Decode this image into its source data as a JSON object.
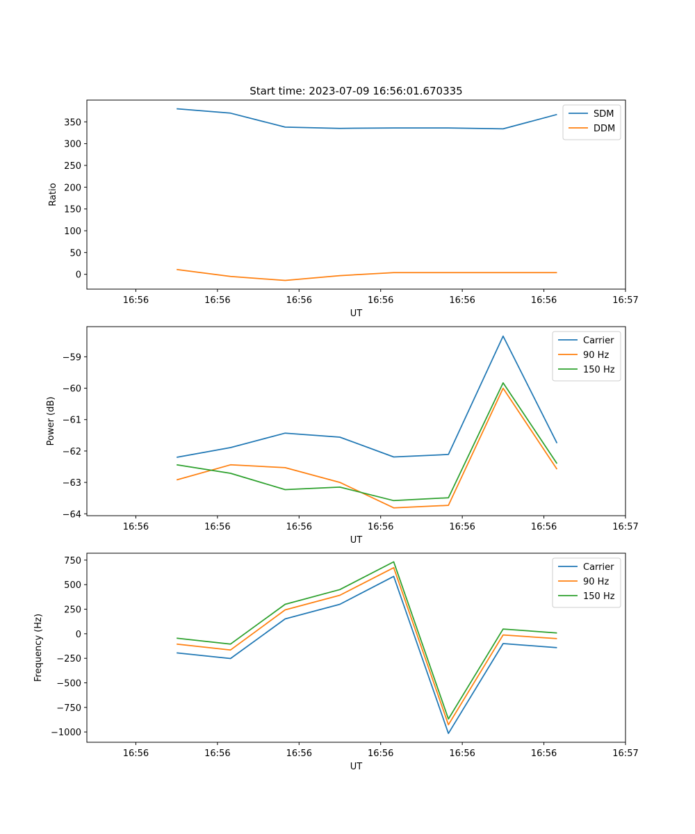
{
  "chart_data": [
    {
      "type": "line",
      "title": "Start time: 2023-07-09 16:56:01.670335",
      "xlabel": "UT",
      "ylabel": "Ratio",
      "xticks": [
        "16:56",
        "16:56",
        "16:56",
        "16:56",
        "16:56",
        "16:56",
        "16:57"
      ],
      "xlim": [
        -0.6,
        6.0
      ],
      "ylim": [
        -34,
        400
      ],
      "yticks": [
        0,
        50,
        100,
        150,
        200,
        250,
        300,
        350
      ],
      "ytick_labels": [
        "0",
        "50",
        "100",
        "150",
        "200",
        "250",
        "300",
        "350"
      ],
      "x": [
        0.5,
        1.16,
        1.83,
        2.5,
        3.16,
        3.83,
        4.5,
        5.16
      ],
      "legend_position": "top-right",
      "series": [
        {
          "name": "SDM",
          "color": "#1f77b4",
          "values": [
            380,
            370,
            338,
            335,
            336,
            336,
            334,
            367
          ]
        },
        {
          "name": "DDM",
          "color": "#ff7f0e",
          "values": [
            11,
            -5,
            -14,
            -3,
            4,
            4,
            4,
            4
          ]
        }
      ]
    },
    {
      "type": "line",
      "title": "",
      "xlabel": "UT",
      "ylabel": "Power (dB)",
      "xticks": [
        "16:56",
        "16:56",
        "16:56",
        "16:56",
        "16:56",
        "16:56",
        "16:57"
      ],
      "xlim": [
        -0.6,
        6.0
      ],
      "ylim": [
        -64.06,
        -58.04
      ],
      "yticks": [
        -64,
        -63,
        -62,
        -61,
        -60,
        -59
      ],
      "ytick_labels": [
        "−64",
        "−63",
        "−62",
        "−61",
        "−60",
        "−59"
      ],
      "x": [
        0.5,
        1.16,
        1.83,
        2.5,
        3.16,
        3.83,
        4.5,
        5.16
      ],
      "legend_position": "top-right",
      "series": [
        {
          "name": "Carrier",
          "color": "#1f77b4",
          "values": [
            -62.2,
            -61.89,
            -61.43,
            -61.56,
            -62.19,
            -62.11,
            -58.34,
            -61.75
          ]
        },
        {
          "name": "90 Hz",
          "color": "#ff7f0e",
          "values": [
            -62.92,
            -62.44,
            -62.53,
            -63.0,
            -63.81,
            -63.73,
            -60.0,
            -62.58
          ]
        },
        {
          "name": "150 Hz",
          "color": "#2ca02c",
          "values": [
            -62.44,
            -62.71,
            -63.23,
            -63.15,
            -63.58,
            -63.49,
            -59.83,
            -62.4
          ]
        }
      ]
    },
    {
      "type": "line",
      "title": "",
      "xlabel": "UT",
      "ylabel": "Frequency (Hz)",
      "xticks": [
        "16:56",
        "16:56",
        "16:56",
        "16:56",
        "16:56",
        "16:56",
        "16:57"
      ],
      "xlim": [
        -0.6,
        6.0
      ],
      "ylim": [
        -1105,
        820
      ],
      "yticks": [
        -1000,
        -750,
        -500,
        -250,
        0,
        250,
        500,
        750
      ],
      "ytick_labels": [
        "−1000",
        "−750",
        "−500",
        "−250",
        "0",
        "250",
        "500",
        "750"
      ],
      "x": [
        0.5,
        1.16,
        1.83,
        2.5,
        3.16,
        3.83,
        4.5,
        5.16
      ],
      "legend_position": "top-right",
      "series": [
        {
          "name": "Carrier",
          "color": "#1f77b4",
          "values": [
            -195,
            -252,
            151,
            300,
            584,
            -1015,
            -100,
            -142
          ]
        },
        {
          "name": "90 Hz",
          "color": "#ff7f0e",
          "values": [
            -105,
            -165,
            243,
            392,
            673,
            -927,
            -12,
            -50
          ]
        },
        {
          "name": "150 Hz",
          "color": "#2ca02c",
          "values": [
            -45,
            -105,
            300,
            450,
            732,
            -868,
            48,
            8
          ]
        }
      ]
    }
  ]
}
